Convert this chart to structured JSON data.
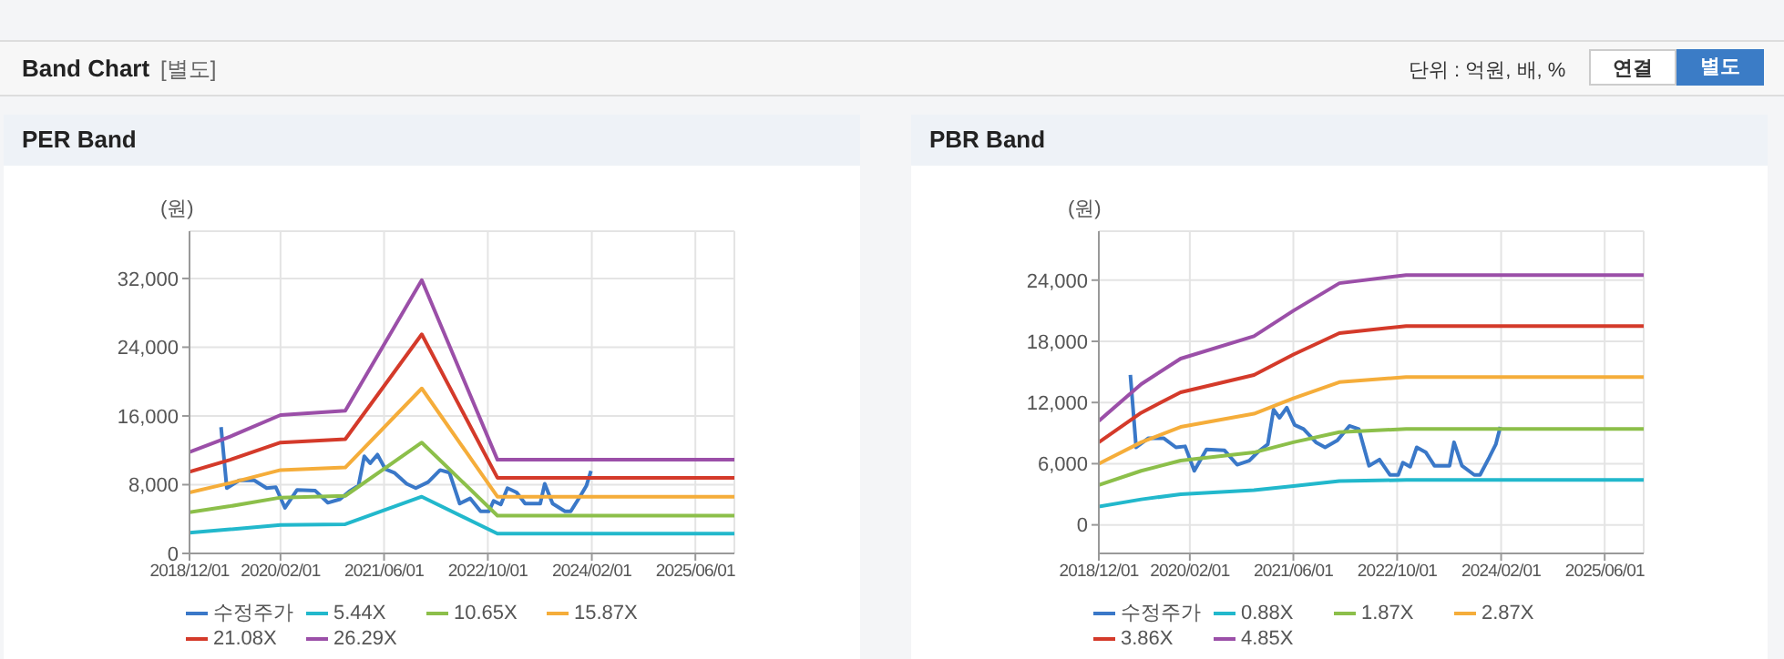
{
  "chart_data": [
    {
      "type": "line",
      "title": "PER Band",
      "ylabel": "(원)",
      "annotations": [
        "Band Chart",
        "[별도]",
        "단위 : 억원, 배, %",
        "연결",
        "별도"
      ],
      "xlim": [
        "2018-12-01",
        "2025-12-01"
      ],
      "xticks": [
        {
          "value": "2018-12-01",
          "label": "2018/12/01"
        },
        {
          "value": "2020-02-01",
          "label": "2020/02/01"
        },
        {
          "value": "2021-06-01",
          "label": "2021/06/01"
        },
        {
          "value": "2022-10-01",
          "label": "2022/10/01"
        },
        {
          "value": "2024-02-01",
          "label": "2024/02/01"
        },
        {
          "value": "2025-06-01",
          "label": "2025/06/01"
        }
      ],
      "ylim": [
        0,
        37500
      ],
      "yticks": [
        0,
        {
          "value": 8000,
          "label": "8,000"
        },
        {
          "value": 16000,
          "label": "16,000"
        },
        {
          "value": 24000,
          "label": "24,000"
        },
        {
          "value": 32000,
          "label": "32,000"
        }
      ],
      "grid": true,
      "legend": "bottom",
      "marker": "none",
      "line_style": "solid",
      "series": [
        {
          "name": "수정주가",
          "color": "#3a78c8",
          "x": [
            "2019-04-28",
            "2019-05-25",
            "2019-07-22",
            "2019-10-01",
            "2019-11-28",
            "2020-01-10",
            "2020-02-22",
            "2020-04-19",
            "2020-07-13",
            "2020-09-10",
            "2020-11-06",
            "2020-12-19",
            "2021-02-01",
            "2021-02-28",
            "2021-03-28",
            "2021-05-01",
            "2021-06-07",
            "2021-07-19",
            "2021-09-15",
            "2021-10-28",
            "2021-12-25",
            "2022-02-19",
            "2022-04-04",
            "2022-05-22",
            "2022-07-10",
            "2022-08-28",
            "2022-10-06",
            "2022-10-28",
            "2022-12-01",
            "2023-01-01",
            "2023-02-13",
            "2023-03-25",
            "2023-06-04",
            "2023-06-25",
            "2023-08-01",
            "2023-09-28",
            "2023-10-25",
            "2023-12-07",
            "2024-01-07",
            "2024-01-28"
          ],
          "values": [
            14700,
            7600,
            8500,
            8500,
            7600,
            7700,
            5300,
            7400,
            7300,
            5900,
            6300,
            7200,
            7900,
            11300,
            10500,
            11500,
            9800,
            9400,
            8100,
            7600,
            8300,
            9700,
            9400,
            5800,
            6400,
            4900,
            4900,
            6100,
            5700,
            7600,
            7100,
            5800,
            5800,
            8100,
            5800,
            4900,
            4900,
            6600,
            7900,
            9600
          ]
        },
        {
          "name": "5.44X",
          "color": "#22b8cc",
          "x": [
            "2018-12-01",
            "2019-06-10",
            "2020-02-01",
            "2020-12-01",
            "2021-11-25",
            "2022-11-15",
            "2025-12-01"
          ],
          "values": [
            2400,
            2800,
            3300,
            3400,
            6600,
            2300,
            2300
          ]
        },
        {
          "name": "10.65X",
          "color": "#8cbf4a",
          "x": [
            "2018-12-01",
            "2019-06-10",
            "2020-02-01",
            "2020-12-01",
            "2021-11-25",
            "2022-11-15",
            "2025-12-01"
          ],
          "values": [
            4800,
            5500,
            6500,
            6700,
            12900,
            4400,
            4400
          ]
        },
        {
          "name": "15.87X",
          "color": "#f5ad3a",
          "x": [
            "2018-12-01",
            "2019-06-10",
            "2020-02-01",
            "2020-12-01",
            "2021-11-25",
            "2022-11-15",
            "2025-12-01"
          ],
          "values": [
            7100,
            8200,
            9700,
            10000,
            19200,
            6600,
            6600
          ]
        },
        {
          "name": "21.08X",
          "color": "#d43a2a",
          "x": [
            "2018-12-01",
            "2019-06-10",
            "2020-02-01",
            "2020-12-01",
            "2021-11-25",
            "2022-11-15",
            "2025-12-01"
          ],
          "values": [
            9500,
            10900,
            12900,
            13300,
            25500,
            8800,
            8800
          ]
        },
        {
          "name": "26.29X",
          "color": "#9b4fa8",
          "x": [
            "2018-12-01",
            "2019-06-10",
            "2020-02-01",
            "2020-12-01",
            "2021-11-25",
            "2022-11-15",
            "2025-12-01"
          ],
          "values": [
            11800,
            13600,
            16100,
            16600,
            31800,
            10900,
            10900
          ]
        }
      ]
    },
    {
      "type": "line",
      "title": "PBR Band",
      "ylabel": "(원)",
      "xlim": [
        "2018-12-01",
        "2025-12-01"
      ],
      "xticks": [
        {
          "value": "2018-12-01",
          "label": "2018/12/01"
        },
        {
          "value": "2020-02-01",
          "label": "2020/02/01"
        },
        {
          "value": "2021-06-01",
          "label": "2021/06/01"
        },
        {
          "value": "2022-10-01",
          "label": "2022/10/01"
        },
        {
          "value": "2024-02-01",
          "label": "2024/02/01"
        },
        {
          "value": "2025-06-01",
          "label": "2025/06/01"
        }
      ],
      "ylim": [
        -2800,
        28800
      ],
      "yticks": [
        0,
        {
          "value": 6000,
          "label": "6,000"
        },
        {
          "value": 12000,
          "label": "12,000"
        },
        {
          "value": 18000,
          "label": "18,000"
        },
        {
          "value": 24000,
          "label": "24,000"
        }
      ],
      "grid": true,
      "legend": "bottom",
      "marker": "none",
      "line_style": "solid",
      "series": [
        {
          "name": "수정주가",
          "color": "#3a78c8",
          "x": [
            "2019-04-28",
            "2019-05-25",
            "2019-07-22",
            "2019-10-01",
            "2019-11-28",
            "2020-01-10",
            "2020-02-22",
            "2020-04-19",
            "2020-07-13",
            "2020-09-10",
            "2020-11-06",
            "2020-12-19",
            "2021-02-01",
            "2021-02-28",
            "2021-03-28",
            "2021-05-01",
            "2021-06-07",
            "2021-07-19",
            "2021-09-15",
            "2021-10-28",
            "2021-12-25",
            "2022-02-19",
            "2022-04-04",
            "2022-05-22",
            "2022-07-10",
            "2022-08-28",
            "2022-10-06",
            "2022-10-28",
            "2022-12-01",
            "2023-01-01",
            "2023-02-13",
            "2023-03-25",
            "2023-06-04",
            "2023-06-25",
            "2023-08-01",
            "2023-09-28",
            "2023-10-25",
            "2023-12-07",
            "2024-01-07",
            "2024-01-28"
          ],
          "values": [
            14700,
            7600,
            8500,
            8500,
            7600,
            7700,
            5300,
            7400,
            7300,
            5900,
            6300,
            7200,
            7900,
            11300,
            10500,
            11500,
            9800,
            9400,
            8100,
            7600,
            8300,
            9700,
            9400,
            5800,
            6400,
            4900,
            4900,
            6100,
            5700,
            7600,
            7100,
            5800,
            5800,
            8100,
            5800,
            4900,
            4900,
            6600,
            7900,
            9600
          ]
        },
        {
          "name": "0.88X",
          "color": "#22b8cc",
          "x": [
            "2018-12-01",
            "2019-06-18",
            "2019-12-20",
            "2020-11-28",
            "2021-06-01",
            "2022-01-03",
            "2022-11-12",
            "2025-12-01"
          ],
          "values": [
            1800,
            2500,
            3000,
            3400,
            3800,
            4300,
            4400,
            4400
          ]
        },
        {
          "name": "1.87X",
          "color": "#8cbf4a",
          "x": [
            "2018-12-01",
            "2019-06-18",
            "2019-12-20",
            "2020-11-28",
            "2021-06-01",
            "2022-01-03",
            "2022-11-12",
            "2025-12-01"
          ],
          "values": [
            3900,
            5300,
            6300,
            7100,
            8100,
            9100,
            9400,
            9400
          ]
        },
        {
          "name": "2.87X",
          "color": "#f5ad3a",
          "x": [
            "2018-12-01",
            "2019-06-18",
            "2019-12-20",
            "2020-11-28",
            "2021-06-01",
            "2022-01-03",
            "2022-11-12",
            "2025-12-01"
          ],
          "values": [
            6000,
            8100,
            9600,
            10900,
            12400,
            14000,
            14500,
            14500
          ]
        },
        {
          "name": "3.86X",
          "color": "#d43a2a",
          "x": [
            "2018-12-01",
            "2019-06-18",
            "2019-12-20",
            "2020-11-28",
            "2021-06-01",
            "2022-01-03",
            "2022-11-12",
            "2025-12-01"
          ],
          "values": [
            8100,
            11000,
            13000,
            14700,
            16700,
            18800,
            19500,
            19500
          ]
        },
        {
          "name": "4.85X",
          "color": "#9b4fa8",
          "x": [
            "2018-12-01",
            "2019-06-18",
            "2019-12-20",
            "2020-11-28",
            "2021-06-01",
            "2022-01-03",
            "2022-11-12",
            "2025-12-01"
          ],
          "values": [
            10200,
            13800,
            16300,
            18500,
            21000,
            23700,
            24500,
            24500
          ]
        }
      ]
    }
  ]
}
